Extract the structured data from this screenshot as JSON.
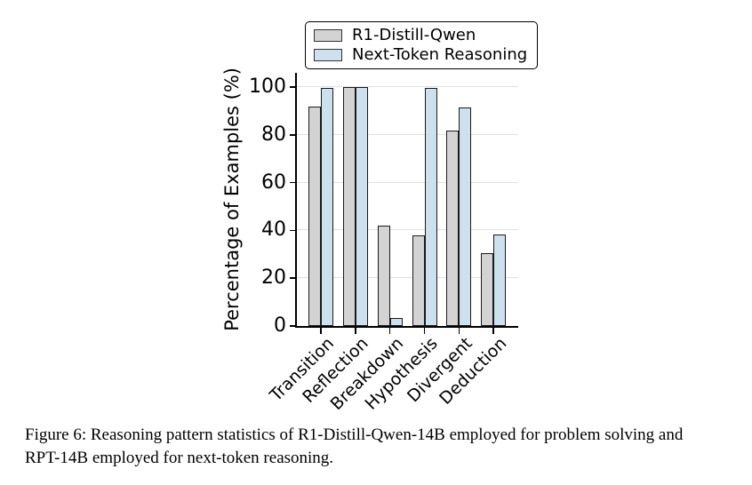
{
  "chart_data": {
    "type": "bar",
    "title": "",
    "categories": [
      "Transition",
      "Reflection",
      "Breakdown",
      "Hypothesis",
      "Divergent",
      "Deduction"
    ],
    "series": [
      {
        "name": "R1-Distill-Qwen",
        "color": "#d3d3d3",
        "values": [
          92,
          100,
          42,
          38,
          82,
          30.5
        ]
      },
      {
        "name": "Next-Token Reasoning",
        "color": "#cde0ee",
        "values": [
          99.5,
          100,
          3.5,
          99.5,
          91.5,
          38.5
        ]
      }
    ],
    "xlabel": "",
    "ylabel": "Percentage of Examples (%)",
    "yticks": [
      0,
      20,
      40,
      60,
      80,
      100
    ],
    "ylim": [
      0,
      106
    ],
    "grid": true,
    "grid_color": "#e2e2e2",
    "bar_edge_color": "#1a1a1a",
    "legend_position": "top-center"
  },
  "caption": {
    "lines": [
      "Figure 6: Reasoning pattern statistics of R1-Distill-Qwen-14B employed for problem solving and",
      "RPT-14B employed for next-token reasoning."
    ]
  }
}
